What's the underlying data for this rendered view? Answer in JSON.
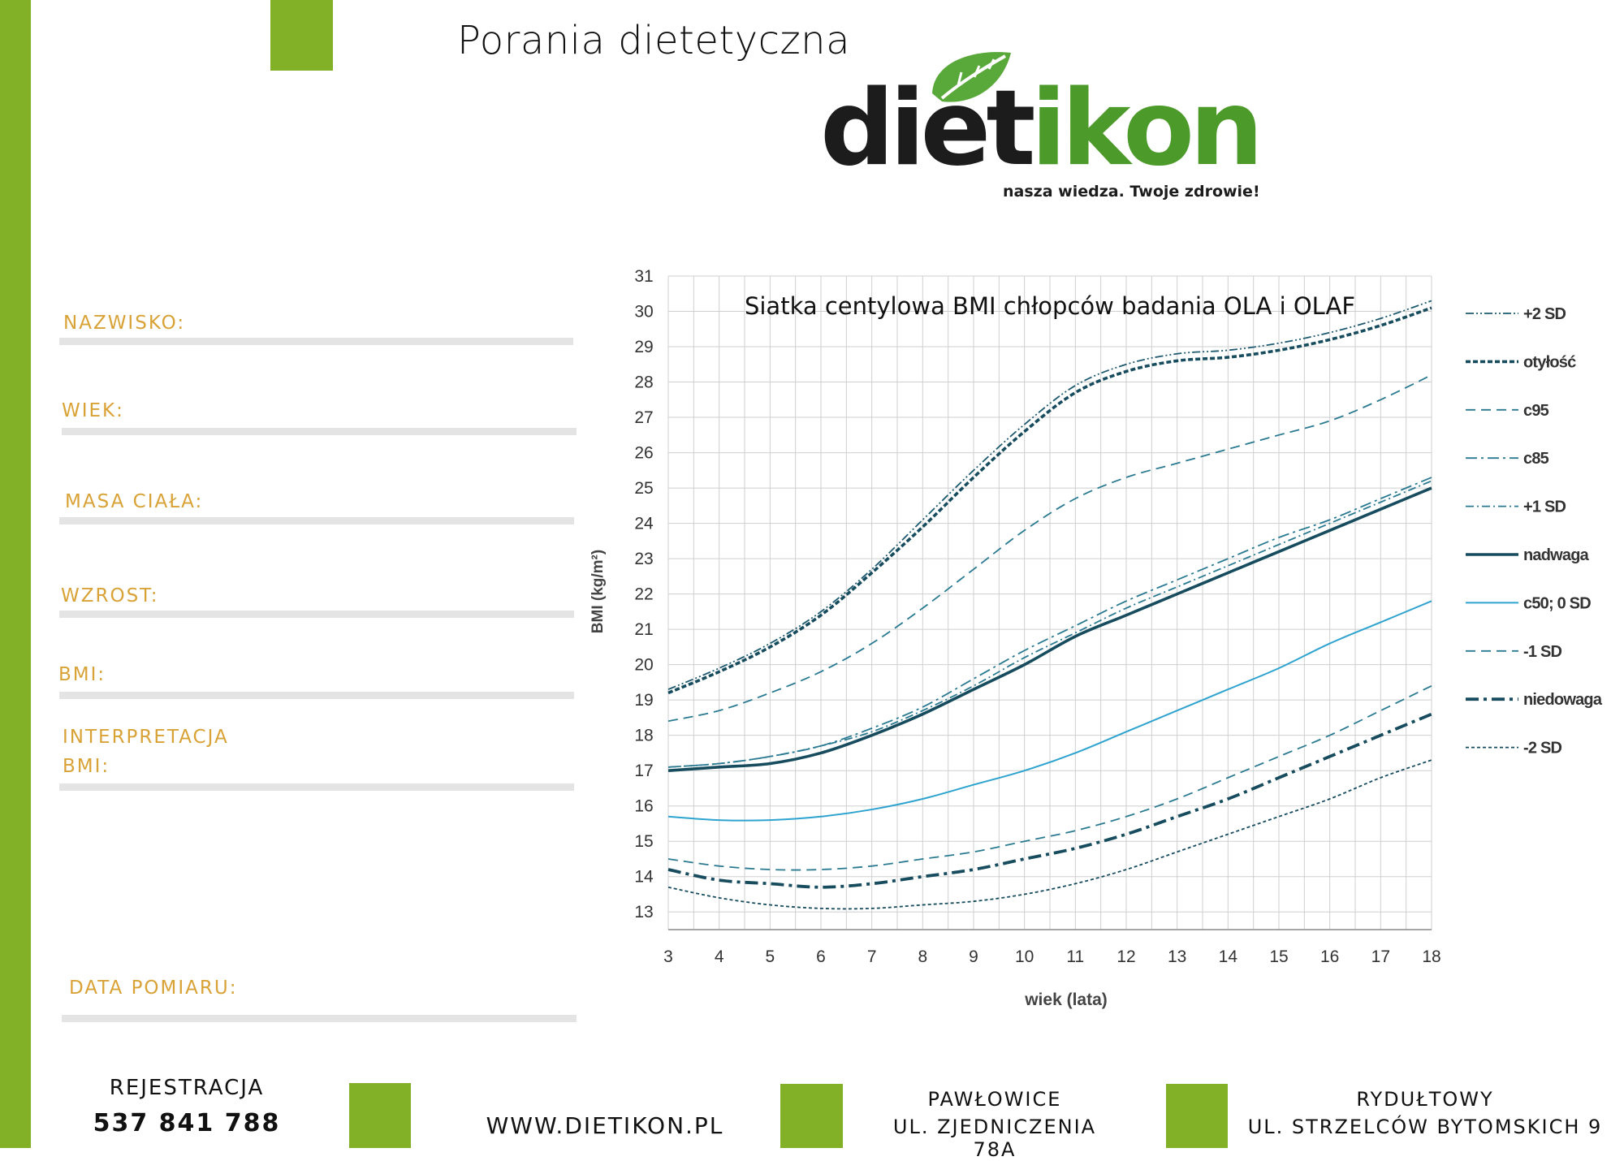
{
  "header": {
    "tagline": "Porania dietetyczna"
  },
  "logo": {
    "word_dark": "die",
    "word_dark_i": "t",
    "word_green": "ikon",
    "slogan": "nasza wiedza. Twoje zdrowie!"
  },
  "form": {
    "fields": [
      {
        "label": "NAZWISKO:"
      },
      {
        "label": "WIEK:"
      },
      {
        "label": "MASA CIAŁA:"
      },
      {
        "label": "WZROST:"
      },
      {
        "label": "BMI:"
      },
      {
        "label_line1": "INTERPRETACJA",
        "label_line2": "BMI:"
      },
      {
        "label": "DATA POMIARU:"
      }
    ]
  },
  "chart_data": {
    "type": "line",
    "title": "Siatka centylowa BMI chłopców badania OLA i OLAF",
    "xlabel": "wiek (lata)",
    "ylabel": "BMI (kg/m²)",
    "xlim": [
      3,
      18
    ],
    "ylim": [
      12.5,
      31
    ],
    "xticks": [
      3,
      4,
      5,
      6,
      7,
      8,
      9,
      10,
      11,
      12,
      13,
      14,
      15,
      16,
      17,
      18
    ],
    "yticks": [
      13,
      14,
      15,
      16,
      17,
      18,
      19,
      20,
      21,
      22,
      23,
      24,
      25,
      26,
      27,
      28,
      29,
      30,
      31
    ],
    "grid": true,
    "legend_position": "right",
    "x": [
      3,
      4,
      5,
      6,
      7,
      8,
      9,
      10,
      11,
      12,
      13,
      14,
      15,
      16,
      17,
      18
    ],
    "series": [
      {
        "name": "+2 SD",
        "style": "dashdotdot",
        "color": "#1f5b70",
        "values": [
          19.3,
          19.9,
          20.6,
          21.5,
          22.7,
          24.1,
          25.5,
          26.8,
          27.9,
          28.5,
          28.8,
          28.9,
          29.1,
          29.4,
          29.8,
          30.3
        ]
      },
      {
        "name": "otyłość",
        "style": "dashbold",
        "color": "#174c5e",
        "values": [
          19.2,
          19.8,
          20.5,
          21.4,
          22.6,
          23.9,
          25.3,
          26.6,
          27.7,
          28.3,
          28.6,
          28.7,
          28.9,
          29.2,
          29.6,
          30.1
        ]
      },
      {
        "name": "c95",
        "style": "dash",
        "color": "#2a7a92",
        "values": [
          18.4,
          18.7,
          19.2,
          19.8,
          20.6,
          21.6,
          22.7,
          23.8,
          24.7,
          25.3,
          25.7,
          26.1,
          26.5,
          26.9,
          27.5,
          28.2
        ]
      },
      {
        "name": "c85",
        "style": "dashdot",
        "color": "#2a7a92",
        "values": [
          17.1,
          17.2,
          17.4,
          17.7,
          18.2,
          18.8,
          19.6,
          20.4,
          21.1,
          21.8,
          22.4,
          23.0,
          23.6,
          24.1,
          24.7,
          25.3
        ]
      },
      {
        "name": "+1 SD",
        "style": "dashdot2",
        "color": "#2a7a92",
        "values": [
          17.1,
          17.2,
          17.4,
          17.7,
          18.1,
          18.7,
          19.4,
          20.2,
          20.9,
          21.6,
          22.2,
          22.8,
          23.4,
          24.0,
          24.6,
          25.2
        ]
      },
      {
        "name": "nadwaga",
        "style": "solidbold",
        "color": "#174c5e",
        "values": [
          17.0,
          17.1,
          17.2,
          17.5,
          18.0,
          18.6,
          19.3,
          20.0,
          20.8,
          21.4,
          22.0,
          22.6,
          23.2,
          23.8,
          24.4,
          25.0
        ]
      },
      {
        "name": "c50; 0 SD",
        "style": "solid",
        "color": "#2ea3cf",
        "values": [
          15.7,
          15.6,
          15.6,
          15.7,
          15.9,
          16.2,
          16.6,
          17.0,
          17.5,
          18.1,
          18.7,
          19.3,
          19.9,
          20.6,
          21.2,
          21.8
        ]
      },
      {
        "name": "-1 SD",
        "style": "dash",
        "color": "#2a7a92",
        "values": [
          14.5,
          14.3,
          14.2,
          14.2,
          14.3,
          14.5,
          14.7,
          15.0,
          15.3,
          15.7,
          16.2,
          16.8,
          17.4,
          18.0,
          18.7,
          19.4
        ]
      },
      {
        "name": "niedowaga",
        "style": "dashdotbold",
        "color": "#174c5e",
        "values": [
          14.2,
          13.9,
          13.8,
          13.7,
          13.8,
          14.0,
          14.2,
          14.5,
          14.8,
          15.2,
          15.7,
          16.2,
          16.8,
          17.4,
          18.0,
          18.6
        ]
      },
      {
        "name": "-2 SD",
        "style": "dotted",
        "color": "#174c5e",
        "values": [
          13.7,
          13.4,
          13.2,
          13.1,
          13.1,
          13.2,
          13.3,
          13.5,
          13.8,
          14.2,
          14.7,
          15.2,
          15.7,
          16.2,
          16.8,
          17.3
        ]
      }
    ]
  },
  "footer": {
    "registration_label": "REJESTRACJA",
    "registration_phone": "537 841 788",
    "website": "WWW.DIETIKON.PL",
    "branch1_city": "PAWŁOWICE",
    "branch1_street": "UL. ZJEDNICZENIA 78A",
    "branch2_city": "RYDUŁTOWY",
    "branch2_street": "UL. STRZELCÓW BYTOMSKICH 9"
  }
}
